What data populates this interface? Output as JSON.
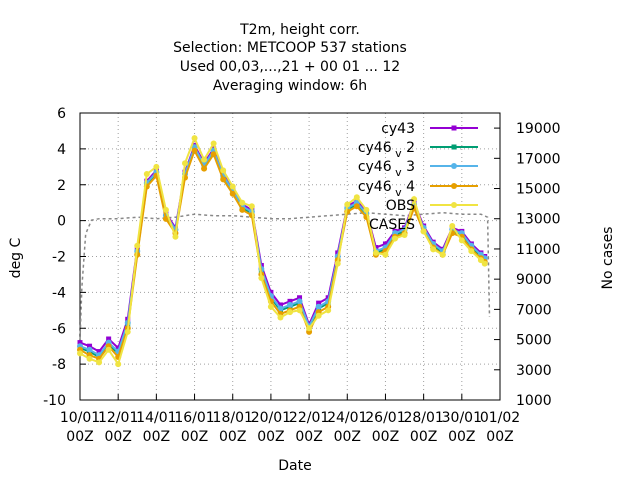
{
  "chart_data": {
    "type": "line",
    "title_lines": [
      "T2m, height corr.",
      "Selection: METCOOP    537 stations",
      "Used  00,03,...,21  + 00 01 ... 12",
      "Averaging window:  6h"
    ],
    "xlabel": "Date",
    "ylabel": "deg C",
    "y2label": "No cases",
    "grid": true,
    "legend_position": "top-right",
    "x_ticks": [
      "10/01 00Z",
      "12/01 00Z",
      "14/01 00Z",
      "16/01 00Z",
      "18/01 00Z",
      "20/01 00Z",
      "22/01 00Z",
      "24/01 00Z",
      "26/01 00Z",
      "28/01 00Z",
      "30/01 00Z",
      "01/02 00Z"
    ],
    "x_range_days": [
      10,
      32
    ],
    "y_ticks": [
      "-10",
      "-8",
      "-6",
      "-4",
      "-2",
      "0",
      "2",
      "4",
      "6"
    ],
    "ylim": [
      -10,
      6
    ],
    "y2_ticks": [
      "1000",
      "3000",
      "5000",
      "7000",
      "9000",
      "11000",
      "13000",
      "15000",
      "17000",
      "19000"
    ],
    "y2lim": [
      1000,
      20000
    ],
    "day": [
      10.0,
      10.5,
      11.0,
      11.5,
      12.0,
      12.5,
      13.0,
      13.5,
      14.0,
      14.5,
      15.0,
      15.5,
      16.0,
      16.5,
      17.0,
      17.5,
      18.0,
      18.5,
      19.0,
      19.5,
      20.0,
      20.5,
      21.0,
      21.5,
      22.0,
      22.5,
      23.0,
      23.5,
      24.0,
      24.5,
      25.0,
      25.5,
      26.0,
      26.5,
      27.0,
      27.5,
      28.0,
      28.5,
      29.0,
      29.5,
      30.0,
      30.5,
      31.0,
      31.2
    ],
    "series": [
      {
        "name": "cy43",
        "color": "#9400d3",
        "marker": "square",
        "values": [
          -6.8,
          -7.0,
          -7.3,
          -6.6,
          -7.1,
          -5.5,
          -1.5,
          2.2,
          2.8,
          0.4,
          -0.4,
          2.7,
          4.2,
          3.2,
          4.0,
          2.6,
          1.8,
          0.9,
          0.6,
          -2.5,
          -4.0,
          -4.7,
          -4.5,
          -4.3,
          -5.8,
          -4.6,
          -4.3,
          -1.8,
          0.8,
          1.1,
          0.5,
          -1.5,
          -1.3,
          -0.6,
          -0.4,
          1.0,
          -0.3,
          -1.2,
          -1.6,
          -0.4,
          -0.6,
          -1.3,
          -1.8,
          -2.0
        ]
      },
      {
        "name": "cy46_v2",
        "color": "#009e73",
        "marker": "square",
        "values": [
          -7.1,
          -7.3,
          -7.6,
          -6.9,
          -7.4,
          -5.8,
          -1.8,
          2.0,
          2.6,
          0.2,
          -0.6,
          2.5,
          4.0,
          3.0,
          3.8,
          2.4,
          1.6,
          0.7,
          0.4,
          -2.8,
          -4.3,
          -5.0,
          -4.8,
          -4.6,
          -6.0,
          -4.9,
          -4.6,
          -2.1,
          0.6,
          0.9,
          0.3,
          -1.8,
          -1.6,
          -0.8,
          -0.6,
          0.8,
          -0.5,
          -1.4,
          -1.8,
          -0.6,
          -0.8,
          -1.5,
          -2.0,
          -2.2
        ]
      },
      {
        "name": "cy46_v3",
        "color": "#56b4e9",
        "marker": "star",
        "values": [
          -7.0,
          -7.2,
          -7.5,
          -6.8,
          -7.3,
          -5.7,
          -1.7,
          2.1,
          2.7,
          0.3,
          -0.5,
          2.6,
          4.1,
          3.1,
          3.9,
          2.5,
          1.7,
          0.8,
          0.5,
          -2.7,
          -4.2,
          -4.9,
          -4.7,
          -4.5,
          -5.9,
          -4.8,
          -4.5,
          -2.0,
          0.7,
          1.0,
          0.4,
          -1.7,
          -1.5,
          -0.7,
          -0.5,
          0.9,
          -0.4,
          -1.3,
          -1.7,
          -0.5,
          -0.7,
          -1.4,
          -1.9,
          -2.1
        ]
      },
      {
        "name": "cy46_v4",
        "color": "#e69f00",
        "marker": "circle",
        "values": [
          -7.2,
          -7.5,
          -7.7,
          -7.0,
          -7.6,
          -6.0,
          -1.9,
          1.9,
          2.5,
          0.1,
          -0.7,
          2.4,
          3.9,
          2.9,
          3.7,
          2.3,
          1.5,
          0.6,
          0.3,
          -3.0,
          -4.5,
          -5.2,
          -5.0,
          -4.8,
          -6.2,
          -5.1,
          -4.8,
          -2.2,
          0.5,
          0.8,
          0.2,
          -1.9,
          -1.7,
          -0.9,
          -0.7,
          0.7,
          -0.6,
          -1.5,
          -1.9,
          -0.7,
          -0.9,
          -1.6,
          -2.1,
          -2.3
        ]
      },
      {
        "name": "OBS",
        "color": "#f0e442",
        "marker": "circle",
        "values": [
          -7.4,
          -7.7,
          -7.9,
          -7.2,
          -8.0,
          -6.2,
          -1.4,
          2.6,
          3.0,
          0.6,
          -0.9,
          3.2,
          4.6,
          3.4,
          4.3,
          2.8,
          1.9,
          1.0,
          0.8,
          -3.2,
          -4.8,
          -5.4,
          -5.1,
          -5.0,
          -6.0,
          -5.3,
          -5.0,
          -2.4,
          0.9,
          1.3,
          0.6,
          -1.8,
          -1.9,
          -1.0,
          -0.8,
          1.2,
          -0.6,
          -1.6,
          -1.9,
          -0.3,
          -1.1,
          -1.7,
          -2.2,
          -2.4
        ]
      }
    ],
    "cases_series": {
      "name": "CASES",
      "color": "#888888",
      "style": "dashed",
      "axis": "y2",
      "x": [
        10.0,
        10.1,
        10.3,
        10.6,
        11,
        12,
        13,
        14,
        15,
        16,
        17,
        18,
        19,
        20,
        21,
        22,
        23,
        24,
        25,
        26,
        27,
        28,
        29,
        30,
        31,
        31.35,
        31.45
      ],
      "values": [
        5000,
        8500,
        12000,
        12900,
        13000,
        13000,
        13100,
        13000,
        13100,
        13300,
        13200,
        13200,
        13100,
        13000,
        13000,
        13100,
        13200,
        13300,
        13400,
        13300,
        13200,
        13300,
        13400,
        13300,
        13300,
        13100,
        6500
      ]
    },
    "legend": [
      {
        "label": "cy43",
        "base": "cy43",
        "sub": ""
      },
      {
        "label": "cy46_v2",
        "base": "cy46",
        "sub": "v",
        "suffix": "2"
      },
      {
        "label": "cy46_v3",
        "base": "cy46",
        "sub": "v",
        "suffix": "3"
      },
      {
        "label": "cy46_v4",
        "base": "cy46",
        "sub": "v",
        "suffix": "4"
      },
      {
        "label": "OBS",
        "base": "OBS",
        "sub": ""
      },
      {
        "label": "CASES",
        "base": "CASES",
        "sub": ""
      }
    ]
  }
}
